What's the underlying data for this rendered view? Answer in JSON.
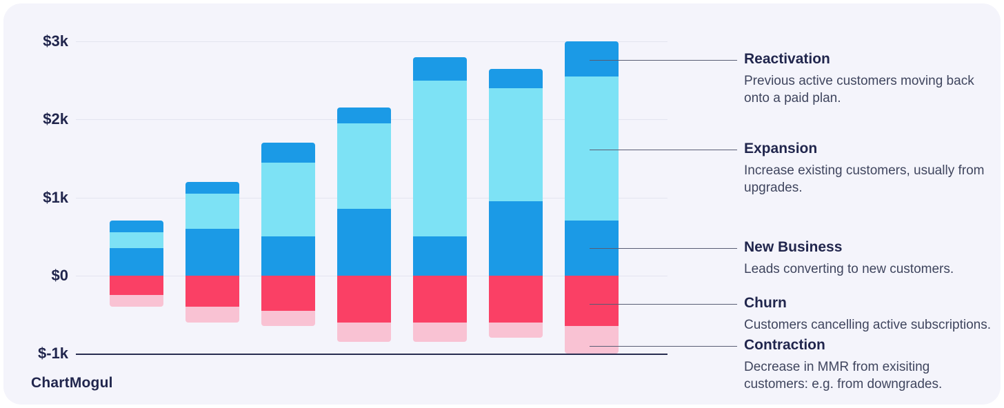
{
  "brand": {
    "logo_text": "ChartMogul"
  },
  "chart_data": {
    "type": "bar",
    "stacked": true,
    "title": "",
    "xlabel": "",
    "ylabel": "",
    "grid": true,
    "legend_position": "right",
    "ylim": [
      -1,
      3
    ],
    "y_axis": {
      "min": -1,
      "max": 3,
      "ticks": [
        {
          "label": "$3k",
          "value": 3
        },
        {
          "label": "$2k",
          "value": 2
        },
        {
          "label": "$1k",
          "value": 1
        },
        {
          "label": "$0",
          "value": 0
        },
        {
          "label": "$-1k",
          "value": -1
        }
      ]
    },
    "categories": [
      "",
      "",
      "",
      "",
      "",
      "",
      ""
    ],
    "series": [
      {
        "name": "New Business",
        "color": "#1b9ae6",
        "values": [
          0.35,
          0.6,
          0.5,
          0.85,
          0.5,
          0.95,
          0.7
        ]
      },
      {
        "name": "Expansion",
        "color": "#7de2f5",
        "values": [
          0.2,
          0.45,
          0.95,
          1.1,
          2.0,
          1.45,
          1.85
        ]
      },
      {
        "name": "Reactivation",
        "color": "#1b9ae6",
        "values": [
          0.15,
          0.15,
          0.25,
          0.2,
          0.3,
          0.25,
          0.45
        ]
      },
      {
        "name": "Churn",
        "color": "#fa4065",
        "values": [
          -0.25,
          -0.4,
          -0.45,
          -0.6,
          -0.6,
          -0.6,
          -0.65
        ]
      },
      {
        "name": "Contraction",
        "color": "#f9c2d3",
        "values": [
          -0.15,
          -0.2,
          -0.2,
          -0.25,
          -0.25,
          -0.2,
          -0.35
        ]
      }
    ]
  },
  "legend": {
    "items": [
      {
        "title": "Reactivation",
        "description": "Previous active customers moving back onto a paid plan."
      },
      {
        "title": "Expansion",
        "description": "Increase existing customers, usually from upgrades."
      },
      {
        "title": "New Business",
        "description": "Leads converting to new customers."
      },
      {
        "title": "Churn",
        "description": "Customers cancelling active subscriptions."
      },
      {
        "title": "Contraction",
        "description": "Decrease in MMR from exisiting customers: e.g. from downgrades."
      }
    ]
  }
}
